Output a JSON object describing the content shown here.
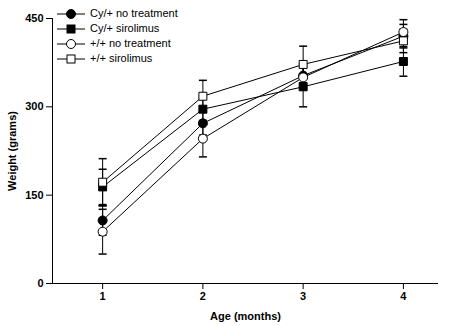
{
  "chart_data": {
    "type": "line",
    "x_label": "Age (months)",
    "y_label": "Weight (grams)",
    "x": [
      1,
      2,
      3,
      4
    ],
    "xlim": [
      0.5,
      4.35
    ],
    "xticks": [
      1,
      2,
      3,
      4
    ],
    "ylim": [
      0,
      450
    ],
    "yticks": [
      0,
      150,
      300,
      450
    ],
    "legend": "upper left",
    "series": [
      {
        "name": "Cy/+ no treatment",
        "color": "#000000",
        "marker": "circle",
        "values": [
          107,
          272,
          353,
          420
        ],
        "errors": [
          25,
          20,
          20,
          20
        ]
      },
      {
        "name": "Cy/+ sirolimus",
        "color": "#000000",
        "marker": "square",
        "values": [
          164,
          296,
          334,
          377
        ],
        "errors": [
          30,
          20,
          34,
          25
        ]
      },
      {
        "name": "+/+ no treatment",
        "color": "#000000",
        "marker": "open-circle",
        "values": [
          88,
          246,
          350,
          427
        ],
        "errors": [
          38,
          31,
          20,
          21
        ]
      },
      {
        "name": "+/+ sirolimus",
        "color": "#000000",
        "marker": "open-square",
        "values": [
          172,
          318,
          372,
          412
        ],
        "errors": [
          40,
          27,
          31,
          20
        ]
      }
    ]
  }
}
